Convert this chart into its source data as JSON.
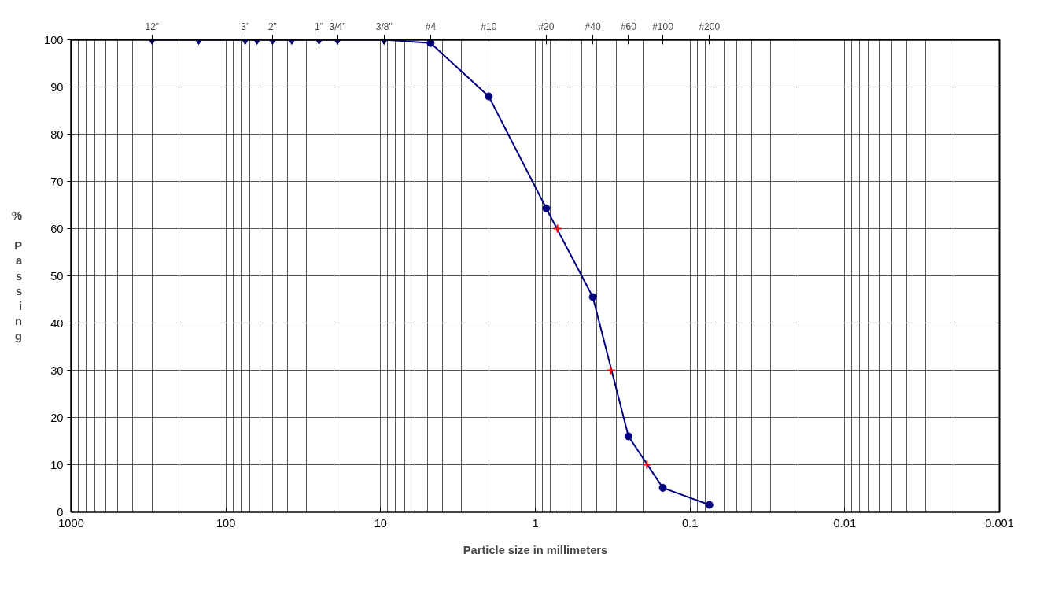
{
  "chart_data": {
    "type": "line",
    "xlabel": "Particle size in millimeters",
    "ylabel": "% Passing",
    "log": "x",
    "xlim": [
      1000,
      0.001
    ],
    "ylim": [
      0,
      100
    ],
    "xticks": [
      1000,
      100,
      10,
      1,
      0.1,
      0.01,
      0.001
    ],
    "yticks": [
      0,
      10,
      20,
      30,
      40,
      50,
      60,
      70,
      80,
      90,
      100
    ],
    "annotations": [
      {
        "text": "12\"",
        "x": 300
      },
      {
        "text": "3\"",
        "x": 75
      },
      {
        "text": "2\"",
        "x": 50
      },
      {
        "text": "1\"",
        "x": 25
      },
      {
        "text": "3/4\"",
        "x": 19
      },
      {
        "text": "3/8\"",
        "x": 9.5
      },
      {
        "text": "#4",
        "x": 4.75
      },
      {
        "text": "#10",
        "x": 2.0
      },
      {
        "text": "#20",
        "x": 0.85
      },
      {
        "text": "#40",
        "x": 0.425
      },
      {
        "text": "#60",
        "x": 0.25
      },
      {
        "text": "#100",
        "x": 0.15
      },
      {
        "text": "#200",
        "x": 0.075
      }
    ],
    "grid": true,
    "series": [
      {
        "marker": "none",
        "color": "#000080",
        "x": [
          300,
          150,
          75,
          63,
          50,
          37.5,
          25,
          19,
          9.5,
          4.75,
          2.0,
          0.85,
          0.425,
          0.25,
          0.15,
          0.075
        ],
        "values": [
          100,
          100,
          100,
          100,
          100,
          100,
          100,
          100,
          100,
          99.3,
          88,
          64.3,
          45.5,
          16,
          5.1,
          1.5
        ]
      },
      {
        "type": "scatter",
        "marker": "diamond",
        "color": "#000080",
        "x": [
          300,
          150,
          75,
          63,
          50,
          37.5,
          25,
          19,
          9.5
        ],
        "values": [
          100,
          100,
          100,
          100,
          100,
          100,
          100,
          100,
          100
        ]
      },
      {
        "type": "scatter",
        "marker": "circle",
        "color": "#000080",
        "x": [
          4.75,
          2.0,
          0.85,
          0.425,
          0.25,
          0.15,
          0.075
        ],
        "values": [
          99.3,
          88,
          64.3,
          45.5,
          16,
          5.1,
          1.5
        ]
      },
      {
        "type": "scatter",
        "marker": "cross",
        "color": "#ff0000",
        "x": [
          0.72,
          0.325,
          0.19
        ],
        "values": [
          60,
          30,
          10
        ]
      }
    ]
  }
}
